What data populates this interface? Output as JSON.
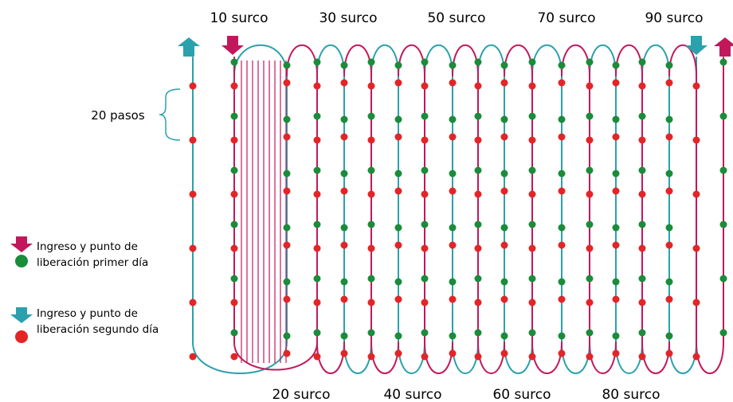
{
  "labels": {
    "surco_top": [
      "10 surco",
      "30 surco",
      "50 surco",
      "70 surco",
      "90 surco"
    ],
    "surco_bottom": [
      "20 surco",
      "40 surco",
      "60 surco",
      "80 surco"
    ],
    "pasos": "20 pasos"
  },
  "legend": {
    "day1_line1": "Ingreso y punto de",
    "day1_line2": "liberación primer día",
    "day2_line1": "Ingreso y punto de",
    "day2_line2": "liberación segundo día"
  },
  "colors": {
    "teal": "#2aa1ad",
    "magenta": "#c2185b",
    "green": "#1a8c3a",
    "red": "#e32527",
    "text": "#1a1a1a"
  }
}
